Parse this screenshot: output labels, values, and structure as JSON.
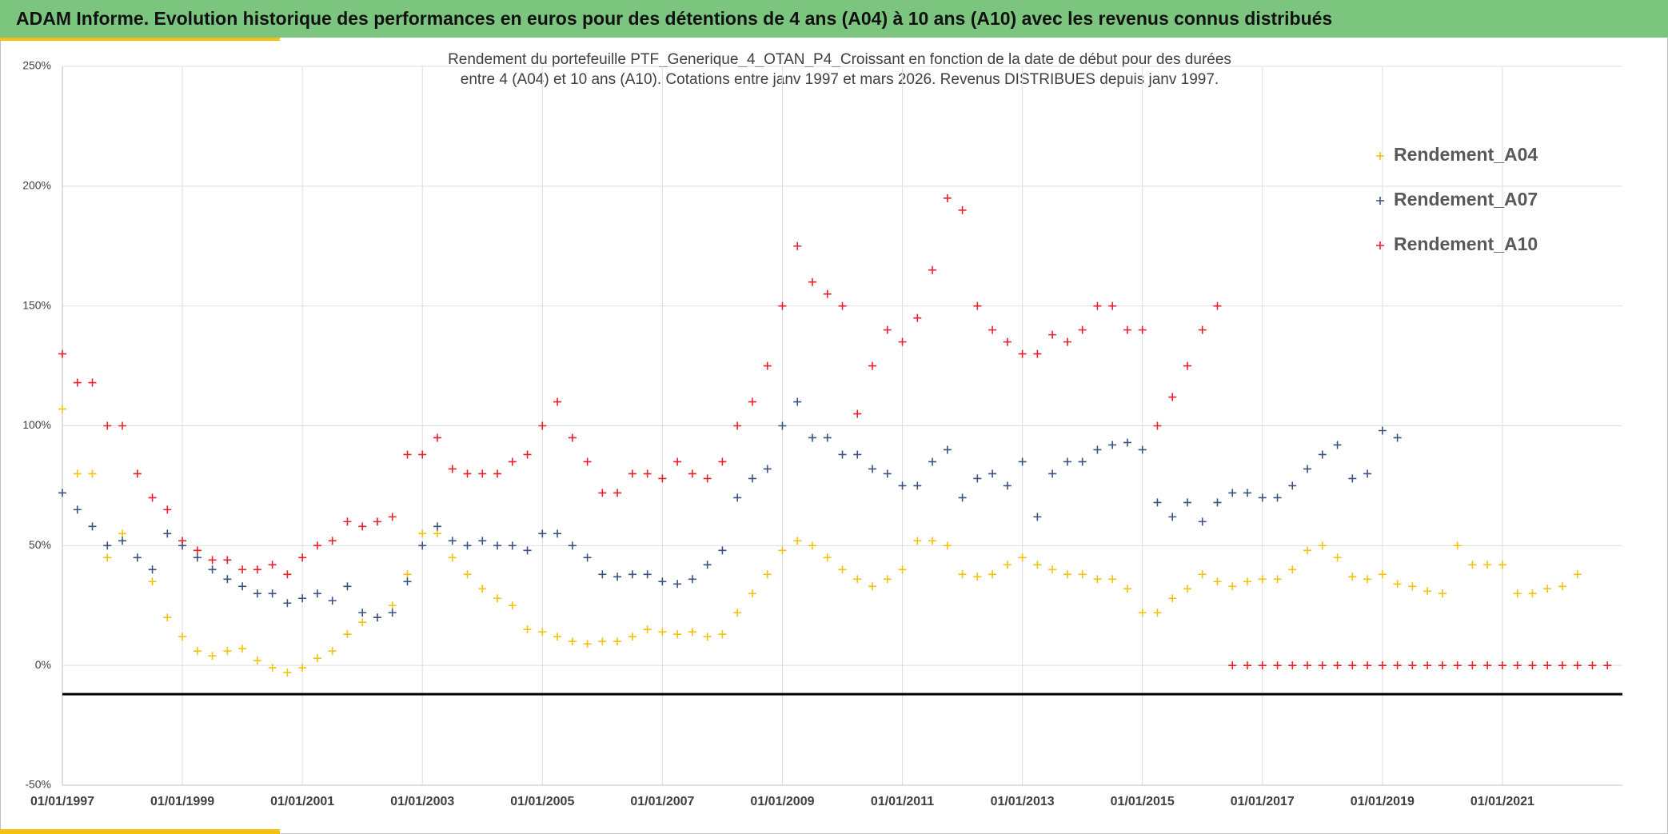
{
  "header": {
    "title": "ADAM Informe. Evolution historique des performances en euros pour des détentions de 4 ans (A04) à 10 ans (A10) avec les revenus connus distribués"
  },
  "chart_data": {
    "type": "scatter",
    "title": [
      "Rendement du portefeuille PTF_Generique_4_OTAN_P4_Croissant  en fonction de la date de début pour des durées",
      "entre 4 (A04) et 10 ans (A10). Cotations entre janv 1997 et mars 2026. Revenus DISTRIBUES depuis janv 1997."
    ],
    "x": [
      1997,
      1997.25,
      1997.5,
      1997.75,
      1998,
      1998.25,
      1998.5,
      1998.75,
      1999,
      1999.25,
      1999.5,
      1999.75,
      2000,
      2000.25,
      2000.5,
      2000.75,
      2001,
      2001.25,
      2001.5,
      2001.75,
      2002,
      2002.25,
      2002.5,
      2002.75,
      2003,
      2003.25,
      2003.5,
      2003.75,
      2004,
      2004.25,
      2004.5,
      2004.75,
      2005,
      2005.25,
      2005.5,
      2005.75,
      2006,
      2006.25,
      2006.5,
      2006.75,
      2007,
      2007.25,
      2007.5,
      2007.75,
      2008,
      2008.25,
      2008.5,
      2008.75,
      2009,
      2009.25,
      2009.5,
      2009.75,
      2010,
      2010.25,
      2010.5,
      2010.75,
      2011,
      2011.25,
      2011.5,
      2011.75,
      2012,
      2012.25,
      2012.5,
      2012.75,
      2013,
      2013.25,
      2013.5,
      2013.75,
      2014,
      2014.25,
      2014.5,
      2014.75,
      2015,
      2015.25,
      2015.5,
      2015.75,
      2016,
      2016.25,
      2016.5,
      2016.75,
      2017,
      2017.25,
      2017.5,
      2017.75,
      2018,
      2018.25,
      2018.5,
      2018.75,
      2019,
      2019.25,
      2019.5,
      2019.75,
      2020,
      2020.25,
      2020.5,
      2020.75,
      2021,
      2021.25,
      2021.5,
      2021.75,
      2022,
      2022.25,
      2022.5,
      2022.75
    ],
    "series": [
      {
        "name": "Rendement_A04",
        "color": "#f4c20d",
        "values": [
          107,
          80,
          80,
          45,
          55,
          45,
          35,
          20,
          12,
          6,
          4,
          6,
          7,
          2,
          -1,
          -3,
          -1,
          3,
          6,
          13,
          18,
          20,
          25,
          38,
          55,
          55,
          45,
          38,
          32,
          28,
          25,
          15,
          14,
          12,
          10,
          9,
          10,
          10,
          12,
          15,
          14,
          13,
          14,
          12,
          13,
          22,
          30,
          38,
          48,
          52,
          50,
          45,
          40,
          36,
          33,
          36,
          40,
          52,
          52,
          50,
          38,
          37,
          38,
          42,
          45,
          42,
          40,
          38,
          38,
          36,
          36,
          32,
          22,
          22,
          28,
          32,
          38,
          35,
          33,
          35,
          36,
          36,
          40,
          48,
          50,
          45,
          37,
          36,
          38,
          34,
          33,
          31,
          30,
          50,
          42,
          42,
          42,
          30,
          30,
          32,
          33,
          38,
          null,
          null
        ]
      },
      {
        "name": "Rendement_A07",
        "color": "#3b5284",
        "values": [
          72,
          65,
          58,
          50,
          52,
          45,
          40,
          55,
          50,
          45,
          40,
          36,
          33,
          30,
          30,
          26,
          28,
          30,
          27,
          33,
          22,
          20,
          22,
          35,
          50,
          58,
          52,
          50,
          52,
          50,
          50,
          48,
          55,
          55,
          50,
          45,
          38,
          37,
          38,
          38,
          35,
          34,
          36,
          42,
          48,
          70,
          78,
          82,
          100,
          110,
          95,
          95,
          88,
          88,
          82,
          80,
          75,
          75,
          85,
          90,
          70,
          78,
          80,
          75,
          85,
          62,
          80,
          85,
          85,
          90,
          92,
          93,
          90,
          68,
          62,
          68,
          60,
          68,
          72,
          72,
          70,
          70,
          75,
          82,
          88,
          92,
          78,
          80,
          98,
          95,
          null,
          null,
          null,
          null,
          null,
          null,
          null,
          null,
          null,
          null,
          null,
          null,
          null,
          null
        ]
      },
      {
        "name": "Rendement_A10",
        "color": "#e8202a",
        "values": [
          130,
          118,
          118,
          100,
          100,
          80,
          70,
          65,
          52,
          48,
          44,
          44,
          40,
          40,
          42,
          38,
          45,
          50,
          52,
          60,
          58,
          60,
          62,
          88,
          88,
          95,
          82,
          80,
          80,
          80,
          85,
          88,
          100,
          110,
          95,
          85,
          72,
          72,
          80,
          80,
          78,
          85,
          80,
          78,
          85,
          100,
          110,
          125,
          150,
          175,
          160,
          155,
          150,
          105,
          125,
          140,
          135,
          145,
          165,
          195,
          190,
          150,
          140,
          135,
          130,
          130,
          138,
          135,
          140,
          150,
          150,
          140,
          140,
          100,
          112,
          125,
          140,
          150,
          0,
          0,
          0,
          0,
          0,
          0,
          0,
          0,
          0,
          0,
          0,
          0,
          0,
          0,
          0,
          0,
          0,
          0,
          0,
          0,
          0,
          0,
          0,
          0,
          0,
          0
        ]
      }
    ],
    "xlim": [
      1997,
      2023
    ],
    "xticks": [
      {
        "value": 1997,
        "label": "01/01/1997"
      },
      {
        "value": 1999,
        "label": "01/01/1999"
      },
      {
        "value": 2001,
        "label": "01/01/2001"
      },
      {
        "value": 2003,
        "label": "01/01/2003"
      },
      {
        "value": 2005,
        "label": "01/01/2005"
      },
      {
        "value": 2007,
        "label": "01/01/2007"
      },
      {
        "value": 2009,
        "label": "01/01/2009"
      },
      {
        "value": 2011,
        "label": "01/01/2011"
      },
      {
        "value": 2013,
        "label": "01/01/2013"
      },
      {
        "value": 2015,
        "label": "01/01/2015"
      },
      {
        "value": 2017,
        "label": "01/01/2017"
      },
      {
        "value": 2019,
        "label": "01/01/2019"
      },
      {
        "value": 2021,
        "label": "01/01/2021"
      }
    ],
    "ylim": [
      -50,
      250
    ],
    "yticks": [
      {
        "value": -50,
        "label": "-50%"
      },
      {
        "value": 0,
        "label": "0%"
      },
      {
        "value": 50,
        "label": "50%"
      },
      {
        "value": 100,
        "label": "100%"
      },
      {
        "value": 150,
        "label": "150%"
      },
      {
        "value": 200,
        "label": "200%"
      },
      {
        "value": 250,
        "label": "250%"
      }
    ],
    "reference_line": -12,
    "grid": true,
    "legend": "upper right"
  }
}
